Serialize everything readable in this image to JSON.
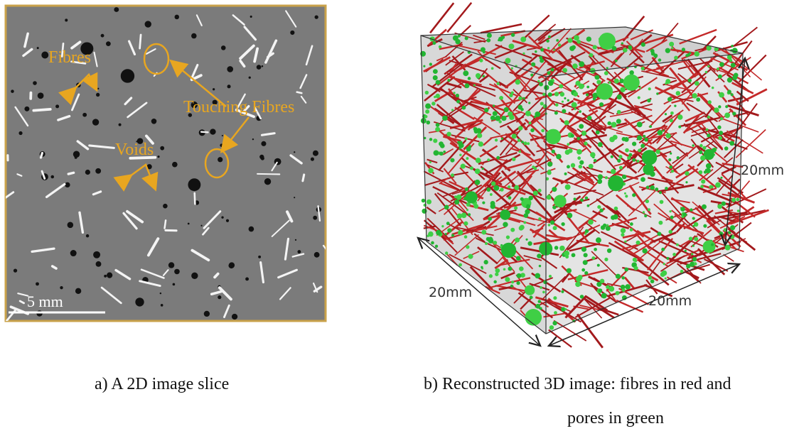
{
  "figure_a": {
    "labels": {
      "fibres": "Fibres",
      "touching_fibres": "Touching Fibres",
      "voids": "Voids"
    },
    "scale_bar": "5 mm",
    "caption": "a) A 2D image slice"
  },
  "figure_b": {
    "dimensions": [
      "20mm",
      "20mm",
      "20mm"
    ],
    "caption_line1": "b) Reconstructed 3D image: fibres in red and",
    "caption_line2": "pores in green"
  }
}
